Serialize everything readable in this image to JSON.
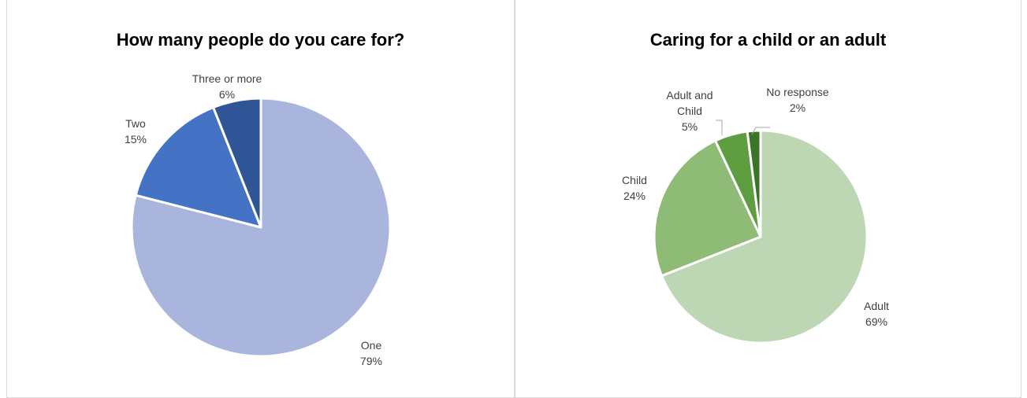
{
  "chart_data": [
    {
      "type": "pie",
      "title": "How many people do you care for?",
      "slices": [
        {
          "label": "One",
          "value": 79,
          "value_label": "79%",
          "color": "#a9b5dc"
        },
        {
          "label": "Two",
          "value": 15,
          "value_label": "15%",
          "color": "#4472c4"
        },
        {
          "label": "Three or more",
          "value": 6,
          "value_label": "6%",
          "color": "#2f5597"
        }
      ]
    },
    {
      "type": "pie",
      "title": "Caring for a child or an adult",
      "slices": [
        {
          "label": "Adult",
          "value": 69,
          "value_label": "69%",
          "color": "#bdd7b4"
        },
        {
          "label": "Child",
          "value": 24,
          "value_label": "24%",
          "color": "#8ebb76"
        },
        {
          "label": "Adult and Child",
          "value": 5,
          "value_label": "5%",
          "color": "#5f9e40"
        },
        {
          "label": "No response",
          "value": 2,
          "value_label": "2%",
          "color": "#3a7427"
        }
      ]
    }
  ]
}
